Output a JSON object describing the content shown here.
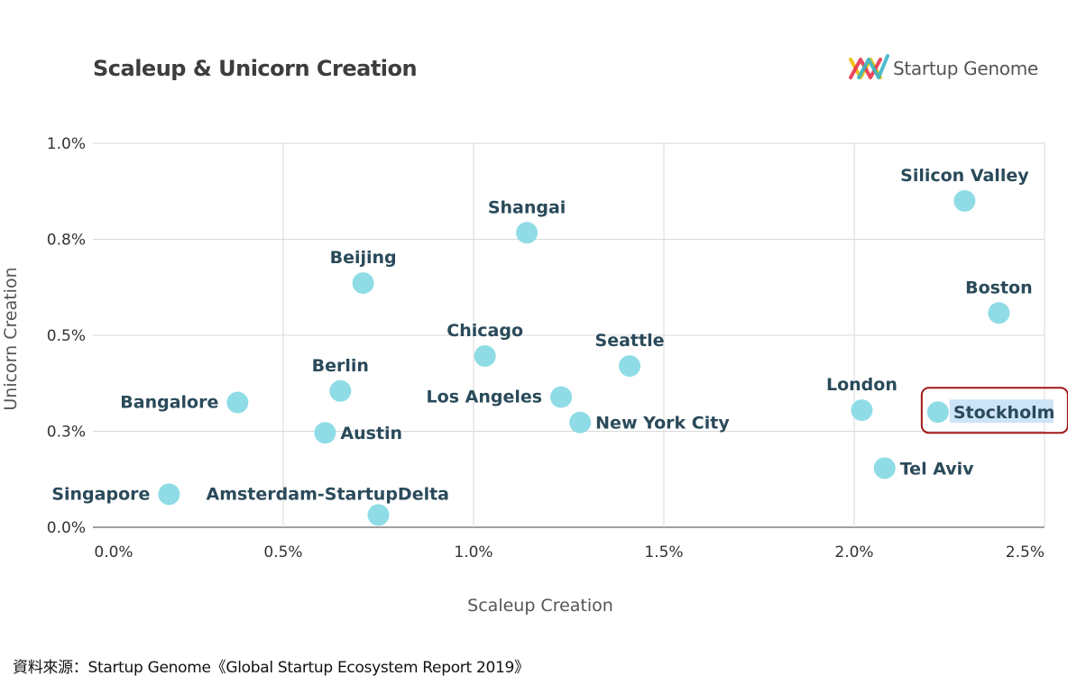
{
  "title": "Scaleup & Unicorn Creation",
  "brand": {
    "name": "Startup Genome",
    "icon": "startup-genome-logo-icon"
  },
  "source": "資料來源：Startup Genome《Global Startup Ecosystem Report 2019》",
  "highlight_color": "#a01818",
  "point_color": "#8fdce6",
  "chart_data": {
    "type": "scatter",
    "title": "Scaleup & Unicorn Creation",
    "xlabel": "Scaleup Creation",
    "ylabel": "Unicorn Creation",
    "xlim": [
      0,
      2.5
    ],
    "ylim": [
      0,
      1.0
    ],
    "x_ticks": [
      0,
      0.5,
      1.0,
      1.5,
      2.0,
      2.5
    ],
    "x_tick_labels": [
      "0.0%",
      "0.5%",
      "1.0%",
      "1.5%",
      "2.0%",
      "2.5%"
    ],
    "y_ticks": [
      0,
      0.25,
      0.5,
      0.75,
      1.0
    ],
    "y_tick_labels": [
      "0.0%",
      "0.3%",
      "0.5%",
      "0.8%",
      "1.0%"
    ],
    "grid": true,
    "highlighted": "Stockholm",
    "points": [
      {
        "label": "Silicon Valley",
        "x": 2.29,
        "y": 0.85,
        "label_pos": "above"
      },
      {
        "label": "Shangai",
        "x": 1.14,
        "y": 0.767,
        "label_pos": "above"
      },
      {
        "label": "Beijing",
        "x": 0.71,
        "y": 0.636,
        "label_pos": "above"
      },
      {
        "label": "Boston",
        "x": 2.38,
        "y": 0.558,
        "label_pos": "above"
      },
      {
        "label": "Chicago",
        "x": 1.03,
        "y": 0.446,
        "label_pos": "above"
      },
      {
        "label": "Seattle",
        "x": 1.41,
        "y": 0.42,
        "label_pos": "above"
      },
      {
        "label": "Berlin",
        "x": 0.65,
        "y": 0.355,
        "label_pos": "above"
      },
      {
        "label": "Bangalore",
        "x": 0.38,
        "y": 0.325,
        "label_pos": "left"
      },
      {
        "label": "Los Angeles",
        "x": 1.23,
        "y": 0.339,
        "label_pos": "left"
      },
      {
        "label": "London",
        "x": 2.02,
        "y": 0.305,
        "label_pos": "above"
      },
      {
        "label": "Stockholm",
        "x": 2.22,
        "y": 0.3,
        "label_pos": "right"
      },
      {
        "label": "New York City",
        "x": 1.28,
        "y": 0.273,
        "label_pos": "right"
      },
      {
        "label": "Austin",
        "x": 0.61,
        "y": 0.246,
        "label_pos": "right"
      },
      {
        "label": "Tel Aviv",
        "x": 2.08,
        "y": 0.154,
        "label_pos": "right"
      },
      {
        "label": "Singapore",
        "x": 0.2,
        "y": 0.086,
        "label_pos": "left"
      },
      {
        "label": "Amsterdam-StartupDelta",
        "x": 0.75,
        "y": 0.032,
        "label_pos": "right-up"
      }
    ]
  }
}
